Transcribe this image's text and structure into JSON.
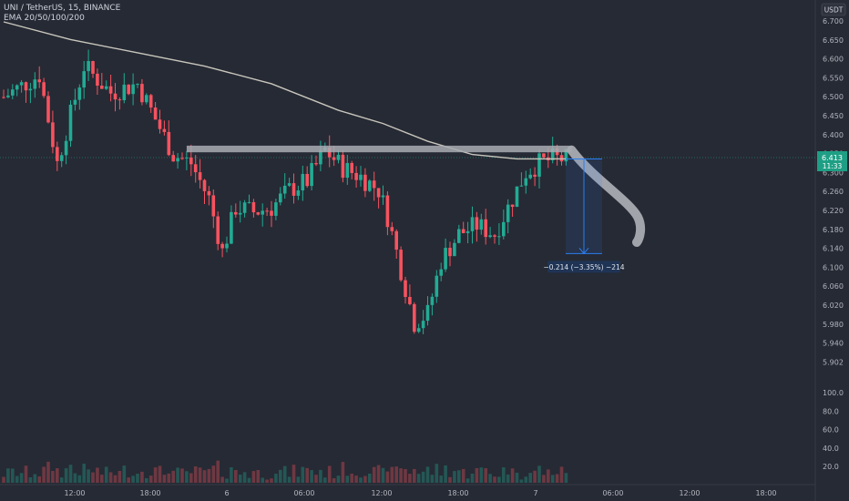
{
  "legend": {
    "symbol_line": "UNI / TetherUS, 15, BINANCE",
    "indicator_line": "EMA 20/50/100/200"
  },
  "currency_badge": "USDT",
  "last_price": {
    "value": "6.413",
    "countdown": "11:33",
    "color": "#1e9f85"
  },
  "measure_label": "−0.214 (−3.35%) −214",
  "colors": {
    "up": "#22ab94",
    "down": "#f7525f",
    "ema": "#c8c6bd",
    "measure": "#2a7ef2",
    "highlight": "#a9abb3"
  },
  "chart_data": {
    "type": "candlestick",
    "price_ticks": [
      "6.700",
      "6.650",
      "6.600",
      "6.550",
      "6.500",
      "6.450",
      "6.400",
      "6.350",
      "6.300",
      "6.260",
      "6.220",
      "6.180",
      "6.140",
      "6.100",
      "6.060",
      "6.020",
      "5.980",
      "5.940",
      "5.902"
    ],
    "volume_ticks": [
      "100.0",
      "80.0",
      "60.0",
      "40.0",
      "20.0"
    ],
    "x_ticks": [
      "12:00",
      "18:00",
      "6",
      "06:00",
      "12:00",
      "18:00",
      "7",
      "06:00",
      "12:00",
      "18:00"
    ],
    "price_range": [
      5.9,
      6.72
    ],
    "series_path": [
      [
        0,
        6.55
      ],
      [
        8,
        6.6
      ],
      [
        12,
        6.4
      ],
      [
        18,
        6.62
      ],
      [
        24,
        6.56
      ],
      [
        30,
        6.58
      ],
      [
        34,
        6.5
      ],
      [
        38,
        6.42
      ],
      [
        42,
        6.4
      ],
      [
        46,
        6.32
      ],
      [
        49,
        6.2
      ],
      [
        52,
        6.3
      ],
      [
        56,
        6.29
      ],
      [
        60,
        6.3
      ],
      [
        64,
        6.34
      ],
      [
        68,
        6.36
      ],
      [
        72,
        6.43
      ],
      [
        76,
        6.39
      ],
      [
        80,
        6.37
      ],
      [
        84,
        6.34
      ],
      [
        86,
        6.28
      ],
      [
        89,
        6.16
      ],
      [
        92,
        6.04
      ],
      [
        95,
        6.06
      ],
      [
        98,
        6.18
      ],
      [
        102,
        6.24
      ],
      [
        106,
        6.26
      ],
      [
        110,
        6.24
      ],
      [
        113,
        6.3
      ],
      [
        117,
        6.38
      ],
      [
        120,
        6.4
      ],
      [
        123,
        6.41
      ],
      [
        126,
        6.41
      ]
    ],
    "ema_path": [
      [
        0,
        6.72
      ],
      [
        15,
        6.68
      ],
      [
        30,
        6.65
      ],
      [
        45,
        6.62
      ],
      [
        60,
        6.58
      ],
      [
        75,
        6.52
      ],
      [
        85,
        6.49
      ],
      [
        95,
        6.45
      ],
      [
        105,
        6.42
      ],
      [
        115,
        6.41
      ],
      [
        126,
        6.41
      ]
    ],
    "resistance_zone": [
      6.425,
      6.44
    ],
    "measure": {
      "from": 6.41,
      "to": 6.196
    }
  }
}
